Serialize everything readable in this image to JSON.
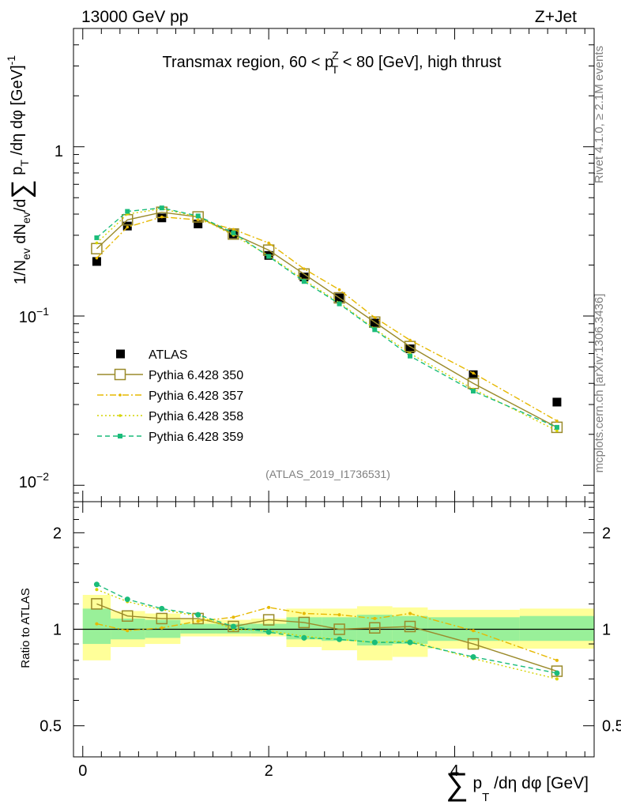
{
  "header": {
    "left": "13000 GeV pp",
    "right": "Z+Jet"
  },
  "side_labels": {
    "rivet": "Rivet 4.1.0, ≥ 2.1M events",
    "mcplots": "mcplots.cern.ch [arXiv:1306.3436]"
  },
  "chart_data": [
    {
      "type": "line",
      "title": "Transmax region, 60 < pT^Z < 80 [GeV], high thrust",
      "title_parts": {
        "pre": "Transmax region, 60 < p",
        "sup": "Z",
        "sub": "T",
        "post": " < 80 [GeV], high thrust"
      },
      "watermark": "(ATLAS_2019_I1736531)",
      "yscale": "log",
      "ylim": [
        0.008,
        5
      ],
      "xlim": [
        -0.1,
        5.5
      ],
      "ylabel": "1/Nev dNev/d∑pT/dη dφ [GeV]^-1",
      "ylabel_parts": {
        "a": "1/N",
        "a_sub": "ev",
        "b": " dN",
        "b_sub": "ev",
        "c": "/d",
        "sum": "∑",
        "d": " p",
        "d_sub": "T",
        "e": " /dη dφ  [GeV]",
        "e_sup": "-1"
      },
      "ytick_labels": {
        "major_1": "1",
        "major_01_base": "10",
        "major_01_exp": "−1",
        "major_001_base": "10",
        "major_001_exp": "−2"
      },
      "x": [
        0.15,
        0.48,
        0.85,
        1.24,
        1.62,
        2.0,
        2.38,
        2.76,
        3.14,
        3.52,
        4.2,
        5.1
      ],
      "series": [
        {
          "name": "ATLAS",
          "style": "data",
          "color": "#000000",
          "values": [
            0.21,
            0.34,
            0.38,
            0.35,
            0.305,
            0.228,
            0.17,
            0.128,
            0.091,
            0.064,
            0.045,
            0.031
          ]
        },
        {
          "name": "Pythia 6.428 350",
          "style": "solid-open-square",
          "color": "#9a8a2a",
          "values": [
            0.25,
            0.37,
            0.41,
            0.385,
            0.305,
            0.245,
            0.177,
            0.128,
            0.092,
            0.066,
            0.04,
            0.022
          ]
        },
        {
          "name": "Pythia 6.428 357",
          "style": "dashdot",
          "color": "#e6b800",
          "values": [
            0.22,
            0.335,
            0.385,
            0.37,
            0.325,
            0.27,
            0.19,
            0.143,
            0.098,
            0.072,
            0.046,
            0.024
          ]
        },
        {
          "name": "Pythia 6.428 358",
          "style": "dotted",
          "color": "#d4d400",
          "values": [
            0.27,
            0.4,
            0.43,
            0.385,
            0.3,
            0.228,
            0.163,
            0.12,
            0.084,
            0.06,
            0.037,
            0.021
          ]
        },
        {
          "name": "Pythia 6.428 359",
          "style": "dashed",
          "color": "#1abc7a",
          "values": [
            0.29,
            0.415,
            0.435,
            0.39,
            0.31,
            0.225,
            0.16,
            0.118,
            0.083,
            0.058,
            0.036,
            0.022
          ]
        }
      ]
    },
    {
      "type": "line",
      "ylabel": "Ratio to ATLAS",
      "xlabel": "∑pT/dη dφ [GeV]",
      "xlabel_parts": {
        "sum": "∑",
        "p": " p",
        "p_sub": "T",
        "rest": " /dη dφ [GeV]"
      },
      "yscale": "log",
      "ylim": [
        0.4,
        2.5
      ],
      "xlim": [
        -0.1,
        5.5
      ],
      "yticks": [
        0.5,
        1,
        2
      ],
      "ytick_labels": [
        "0.5",
        "1",
        "2"
      ],
      "xticks": [
        0,
        2,
        4
      ],
      "xtick_labels": [
        "0",
        "2",
        "4"
      ],
      "x": [
        0.15,
        0.48,
        0.85,
        1.24,
        1.62,
        2.0,
        2.38,
        2.76,
        3.14,
        3.52,
        4.2,
        5.1
      ],
      "bands": {
        "bin_edges": [
          0.0,
          0.3,
          0.67,
          1.05,
          1.43,
          1.81,
          2.19,
          2.57,
          2.95,
          3.33,
          3.71,
          4.7,
          5.5
        ],
        "yellow": [
          [
            0.8,
            1.28
          ],
          [
            0.88,
            1.14
          ],
          [
            0.9,
            1.12
          ],
          [
            0.95,
            1.08
          ],
          [
            0.95,
            1.07
          ],
          [
            0.95,
            1.08
          ],
          [
            0.88,
            1.16
          ],
          [
            0.86,
            1.16
          ],
          [
            0.8,
            1.18
          ],
          [
            0.82,
            1.17
          ],
          [
            0.87,
            1.15
          ],
          [
            0.87,
            1.16
          ]
        ],
        "green": [
          [
            0.9,
            1.16
          ],
          [
            0.93,
            1.08
          ],
          [
            0.94,
            1.07
          ],
          [
            0.97,
            1.04
          ],
          [
            0.97,
            1.04
          ],
          [
            0.97,
            1.04
          ],
          [
            0.93,
            1.09
          ],
          [
            0.92,
            1.09
          ],
          [
            0.89,
            1.11
          ],
          [
            0.9,
            1.1
          ],
          [
            0.92,
            1.09
          ],
          [
            0.92,
            1.1
          ]
        ]
      },
      "series": [
        {
          "name": "Pythia 6.428 350",
          "color": "#9a8a2a",
          "values": [
            1.2,
            1.1,
            1.08,
            1.08,
            1.02,
            1.07,
            1.05,
            1.0,
            1.01,
            1.02,
            0.9,
            0.74
          ]
        },
        {
          "name": "Pythia 6.428 357",
          "color": "#e6b800",
          "values": [
            1.04,
            0.99,
            1.01,
            1.06,
            1.09,
            1.17,
            1.12,
            1.11,
            1.08,
            1.12,
            0.99,
            0.8
          ]
        },
        {
          "name": "Pythia 6.428 358",
          "color": "#d4d400",
          "values": [
            1.33,
            1.22,
            1.15,
            1.1,
            1.0,
            0.99,
            0.95,
            0.93,
            0.91,
            0.92,
            0.81,
            0.7
          ]
        },
        {
          "name": "Pythia 6.428 359",
          "color": "#1abc7a",
          "values": [
            1.38,
            1.24,
            1.16,
            1.11,
            1.02,
            0.98,
            0.94,
            0.93,
            0.91,
            0.91,
            0.82,
            0.73
          ]
        }
      ]
    }
  ]
}
